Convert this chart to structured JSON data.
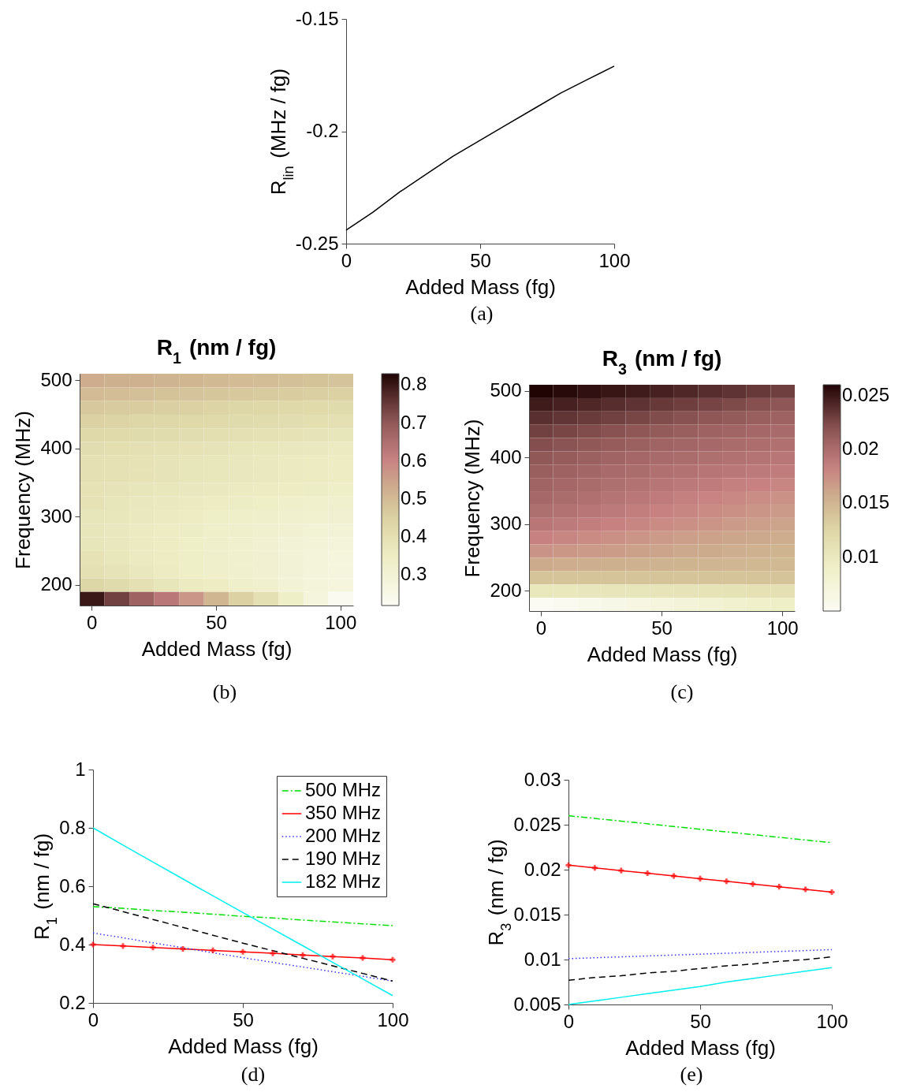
{
  "chart_data": [
    {
      "type": "line",
      "xlabel": "Added Mass (fg)",
      "ylabel": "R$_{lin}$ (MHz / fg)",
      "x": [
        0,
        10,
        20,
        30,
        40,
        50,
        60,
        70,
        80,
        90,
        100
      ],
      "series": [
        {
          "color": "#000000",
          "line_style": "solid",
          "values": [
            -0.244,
            -0.236,
            -0.227,
            -0.219,
            -0.211,
            -0.204,
            -0.197,
            -0.19,
            -0.183,
            -0.177,
            -0.171
          ]
        }
      ],
      "xlim": [
        0,
        100
      ],
      "ylim": [
        -0.25,
        -0.15
      ],
      "xticks": [
        0,
        50,
        100
      ],
      "yticks": [
        -0.25,
        -0.2,
        -0.15
      ],
      "grid": false,
      "legend": false,
      "annotations": [
        "(a)"
      ]
    },
    {
      "type": "heatmap",
      "title": "R$_{1}$ (nm / fg)",
      "xlabel": "Added Mass (fg)",
      "ylabel": "Frequency (MHz)",
      "categories": [
        "0",
        null,
        null,
        null,
        null,
        "50",
        null,
        null,
        null,
        null,
        "100"
      ],
      "y_categories": [
        "500",
        null,
        null,
        null,
        null,
        "400",
        null,
        null,
        null,
        null,
        "300",
        null,
        null,
        null,
        null,
        "200",
        null
      ],
      "cells": [
        [
          0.53,
          0.525,
          0.52,
          0.515,
          0.51,
          0.505,
          0.5,
          0.495,
          0.49,
          0.485,
          0.48
        ],
        [
          0.5,
          0.495,
          0.49,
          0.485,
          0.48,
          0.475,
          0.47,
          0.465,
          0.46,
          0.455,
          0.45
        ],
        [
          0.47,
          0.465,
          0.46,
          0.455,
          0.45,
          0.445,
          0.44,
          0.435,
          0.43,
          0.425,
          0.42
        ],
        [
          0.45,
          0.445,
          0.44,
          0.435,
          0.43,
          0.425,
          0.42,
          0.415,
          0.41,
          0.405,
          0.4
        ],
        [
          0.43,
          0.425,
          0.42,
          0.415,
          0.41,
          0.405,
          0.4,
          0.395,
          0.39,
          0.385,
          0.38
        ],
        [
          0.41,
          0.405,
          0.4,
          0.395,
          0.39,
          0.385,
          0.38,
          0.375,
          0.37,
          0.365,
          0.36
        ],
        [
          0.4,
          0.395,
          0.39,
          0.385,
          0.38,
          0.375,
          0.37,
          0.365,
          0.36,
          0.355,
          0.35
        ],
        [
          0.4,
          0.395,
          0.39,
          0.385,
          0.38,
          0.375,
          0.37,
          0.365,
          0.36,
          0.355,
          0.35
        ],
        [
          0.39,
          0.385,
          0.38,
          0.375,
          0.37,
          0.365,
          0.36,
          0.355,
          0.35,
          0.345,
          0.34
        ],
        [
          0.39,
          0.38,
          0.37,
          0.365,
          0.36,
          0.35,
          0.345,
          0.34,
          0.33,
          0.325,
          0.32
        ],
        [
          0.38,
          0.375,
          0.365,
          0.36,
          0.35,
          0.34,
          0.335,
          0.33,
          0.32,
          0.315,
          0.31
        ],
        [
          0.38,
          0.37,
          0.36,
          0.35,
          0.345,
          0.335,
          0.33,
          0.32,
          0.31,
          0.305,
          0.3
        ],
        [
          0.38,
          0.37,
          0.36,
          0.35,
          0.34,
          0.33,
          0.32,
          0.31,
          0.3,
          0.295,
          0.29
        ],
        [
          0.39,
          0.375,
          0.36,
          0.35,
          0.34,
          0.33,
          0.32,
          0.31,
          0.3,
          0.29,
          0.28
        ],
        [
          0.4,
          0.385,
          0.37,
          0.355,
          0.34,
          0.33,
          0.32,
          0.31,
          0.3,
          0.29,
          0.28
        ],
        [
          0.44,
          0.42,
          0.4,
          0.38,
          0.36,
          0.35,
          0.33,
          0.32,
          0.3,
          0.29,
          0.28
        ],
        [
          0.8,
          0.74,
          0.68,
          0.63,
          0.57,
          0.51,
          0.45,
          0.4,
          0.34,
          0.28,
          0.23
        ]
      ],
      "clim": [
        0.22,
        0.83
      ],
      "cticks": [
        0.3,
        0.4,
        0.5,
        0.6,
        0.7,
        0.8
      ],
      "annotations": [
        "(b)"
      ]
    },
    {
      "type": "heatmap",
      "title": "R$_{3}$ (nm / fg)",
      "xlabel": "Added Mass (fg)",
      "ylabel": "Frequency (MHz)",
      "categories": [
        "0",
        null,
        null,
        null,
        null,
        "50",
        null,
        null,
        null,
        null,
        "100"
      ],
      "y_categories": [
        "500",
        null,
        null,
        null,
        null,
        "400",
        null,
        null,
        null,
        null,
        "300",
        null,
        null,
        null,
        null,
        "200",
        null
      ],
      "cells": [
        [
          0.026,
          0.0257,
          0.0254,
          0.0251,
          0.0248,
          0.0245,
          0.0242,
          0.0239,
          0.0236,
          0.0233,
          0.023
        ],
        [
          0.0248,
          0.0245,
          0.0242,
          0.0239,
          0.0236,
          0.0233,
          0.023,
          0.0227,
          0.0224,
          0.0221,
          0.0218
        ],
        [
          0.0238,
          0.0235,
          0.0232,
          0.0229,
          0.0226,
          0.0223,
          0.022,
          0.0217,
          0.0214,
          0.0211,
          0.0208
        ],
        [
          0.0229,
          0.0226,
          0.0223,
          0.022,
          0.0217,
          0.0214,
          0.0211,
          0.0208,
          0.0206,
          0.0204,
          0.0202
        ],
        [
          0.0222,
          0.0219,
          0.0216,
          0.0213,
          0.021,
          0.0207,
          0.0205,
          0.0203,
          0.0201,
          0.0199,
          0.0197
        ],
        [
          0.0216,
          0.0213,
          0.021,
          0.0207,
          0.0204,
          0.0202,
          0.02,
          0.0198,
          0.0196,
          0.0194,
          0.0192
        ],
        [
          0.0211,
          0.0208,
          0.0205,
          0.0202,
          0.02,
          0.0197,
          0.0195,
          0.0193,
          0.0191,
          0.0189,
          0.0187
        ],
        [
          0.0207,
          0.0204,
          0.0201,
          0.0198,
          0.0195,
          0.0193,
          0.019,
          0.0188,
          0.0185,
          0.0183,
          0.018
        ],
        [
          0.0203,
          0.02,
          0.0197,
          0.0194,
          0.0191,
          0.0188,
          0.0185,
          0.0182,
          0.0179,
          0.0176,
          0.0173
        ],
        [
          0.0198,
          0.0195,
          0.0192,
          0.0189,
          0.0186,
          0.0183,
          0.018,
          0.0177,
          0.0174,
          0.0171,
          0.0168
        ],
        [
          0.0192,
          0.0189,
          0.0186,
          0.0183,
          0.018,
          0.0177,
          0.0174,
          0.0171,
          0.0168,
          0.0165,
          0.0162
        ],
        [
          0.0183,
          0.018,
          0.0177,
          0.0174,
          0.0171,
          0.0168,
          0.0165,
          0.0163,
          0.0161,
          0.0159,
          0.0157
        ],
        [
          0.0172,
          0.017,
          0.0168,
          0.0166,
          0.0164,
          0.0162,
          0.016,
          0.0158,
          0.0156,
          0.0154,
          0.0152
        ],
        [
          0.0158,
          0.0157,
          0.0156,
          0.0155,
          0.0154,
          0.0153,
          0.0152,
          0.0151,
          0.015,
          0.0149,
          0.0148
        ],
        [
          0.014,
          0.014,
          0.014,
          0.014,
          0.014,
          0.014,
          0.014,
          0.014,
          0.014,
          0.014,
          0.014
        ],
        [
          0.0101,
          0.0102,
          0.0103,
          0.0104,
          0.0105,
          0.0106,
          0.0107,
          0.0108,
          0.0109,
          0.011,
          0.0111
        ],
        [
          0.005,
          0.0054,
          0.0058,
          0.0062,
          0.0066,
          0.007,
          0.0075,
          0.0079,
          0.0083,
          0.0087,
          0.0091
        ]
      ],
      "clim": [
        0.005,
        0.026
      ],
      "cticks": [
        0.01,
        0.015,
        0.02,
        0.025
      ],
      "annotations": [
        "(c)"
      ]
    },
    {
      "type": "line",
      "xlabel": "Added Mass (fg)",
      "ylabel": "R$_{1}$ (nm / fg)",
      "x": [
        0,
        10,
        20,
        30,
        40,
        50,
        60,
        70,
        80,
        90,
        100
      ],
      "series": [
        {
          "name": "500 MHz",
          "color": "#00dd00",
          "line_style": "dashdot",
          "values": [
            0.53,
            0.524,
            0.517,
            0.511,
            0.504,
            0.497,
            0.491,
            0.484,
            0.478,
            0.471,
            0.465
          ]
        },
        {
          "name": "350 MHz",
          "color": "#ff0000",
          "line_style": "solid",
          "marker": "cross",
          "values": [
            0.4,
            0.395,
            0.39,
            0.385,
            0.38,
            0.375,
            0.37,
            0.364,
            0.359,
            0.354,
            0.348
          ]
        },
        {
          "name": "200 MHz",
          "color": "#3333ff",
          "line_style": "dotted",
          "values": [
            0.44,
            0.423,
            0.406,
            0.389,
            0.372,
            0.355,
            0.339,
            0.323,
            0.307,
            0.291,
            0.275
          ]
        },
        {
          "name": "190 MHz",
          "color": "#000000",
          "line_style": "dashed",
          "values": [
            0.54,
            0.513,
            0.486,
            0.459,
            0.432,
            0.405,
            0.379,
            0.353,
            0.327,
            0.301,
            0.275
          ]
        },
        {
          "name": "182 MHz",
          "color": "#00eeee",
          "line_style": "solid",
          "values": [
            0.8,
            0.741,
            0.683,
            0.625,
            0.567,
            0.51,
            0.453,
            0.396,
            0.339,
            0.282,
            0.225
          ]
        }
      ],
      "xlim": [
        0,
        100
      ],
      "ylim": [
        0.2,
        1
      ],
      "xticks": [
        0,
        50,
        100
      ],
      "yticks": [
        0.2,
        0.4,
        0.6,
        0.8,
        1
      ],
      "grid": false,
      "legend": "top right",
      "annotations": [
        "(d)"
      ]
    },
    {
      "type": "line",
      "xlabel": "Added Mass (fg)",
      "ylabel": "R$_{3}$ (nm / fg)",
      "x": [
        0,
        10,
        20,
        30,
        40,
        50,
        60,
        70,
        80,
        90,
        100
      ],
      "series": [
        {
          "color": "#00dd00",
          "line_style": "dashdot",
          "values": [
            0.026,
            0.0257,
            0.0254,
            0.0251,
            0.0248,
            0.0245,
            0.0242,
            0.0239,
            0.0236,
            0.0233,
            0.023
          ]
        },
        {
          "color": "#ff0000",
          "line_style": "solid",
          "marker": "cross",
          "values": [
            0.0205,
            0.0202,
            0.0199,
            0.0196,
            0.0193,
            0.019,
            0.0187,
            0.0184,
            0.0181,
            0.0178,
            0.0175
          ]
        },
        {
          "color": "#3333ff",
          "line_style": "dotted",
          "values": [
            0.0101,
            0.0102,
            0.0103,
            0.0104,
            0.0105,
            0.0106,
            0.0107,
            0.0108,
            0.0109,
            0.011,
            0.0111
          ]
        },
        {
          "color": "#000000",
          "line_style": "dashed",
          "values": [
            0.0077,
            0.008,
            0.0082,
            0.0085,
            0.0087,
            0.009,
            0.0093,
            0.0095,
            0.0098,
            0.01,
            0.0103
          ]
        },
        {
          "color": "#00eeee",
          "line_style": "solid",
          "values": [
            0.005,
            0.0054,
            0.0058,
            0.0062,
            0.0066,
            0.007,
            0.0075,
            0.0079,
            0.0083,
            0.0087,
            0.0091
          ]
        }
      ],
      "xlim": [
        0,
        100
      ],
      "ylim": [
        0.005,
        0.03
      ],
      "xticks": [
        0,
        50,
        100
      ],
      "yticks": [
        0.005,
        0.01,
        0.015,
        0.02,
        0.025,
        0.03
      ],
      "grid": false,
      "legend": false,
      "annotations": [
        "(e)"
      ]
    }
  ]
}
